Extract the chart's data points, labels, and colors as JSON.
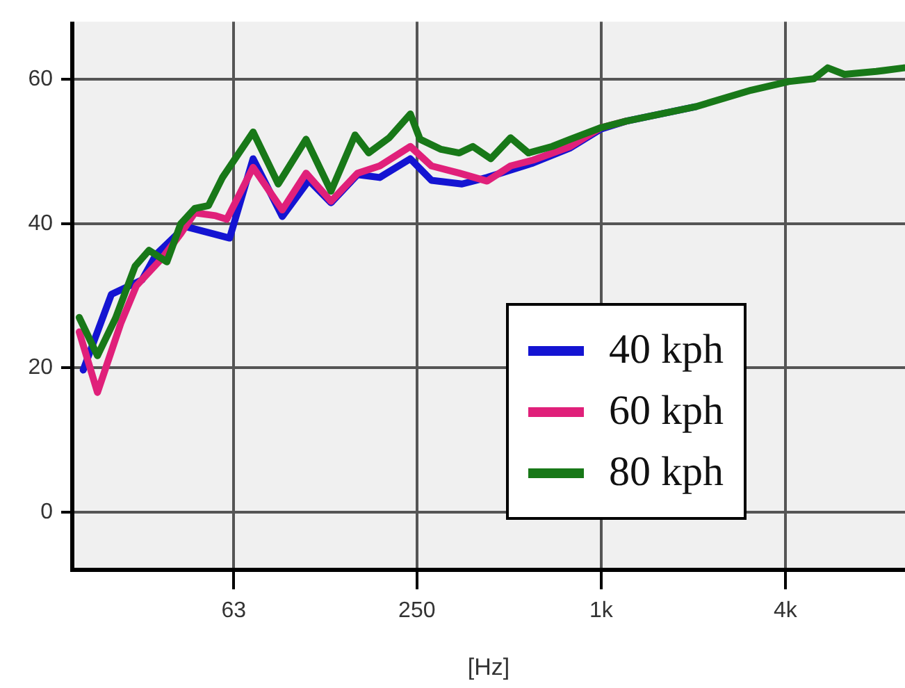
{
  "chart_data": {
    "type": "line",
    "xlabel": "[Hz]",
    "log": "x",
    "xlim": [
      18.7,
      9840
    ],
    "xticks": [
      63,
      250,
      {
        "value": 1000,
        "label": "1k"
      },
      {
        "value": 4000,
        "label": "4k"
      }
    ],
    "ylim": [
      -8,
      68
    ],
    "yticks": [
      0,
      20,
      40,
      60
    ],
    "grid": true,
    "legend": "bottom right",
    "marker": "none",
    "line_style": "solid",
    "series": [
      {
        "name": "40 kph",
        "color": "#1414d2",
        "x": [
          20.3,
          25.1,
          31.6,
          35.1,
          43.7,
          61.1,
          72.9,
          90.8,
          110.9,
          131,
          160,
          189,
          238,
          279,
          351,
          424,
          598,
          793,
          998,
          1205,
          2032
        ],
        "values": [
          19.7,
          30.2,
          32.2,
          35.7,
          39.6,
          38,
          49,
          41,
          46,
          42.9,
          46.8,
          46.4,
          49,
          46,
          45.5,
          46.4,
          48.4,
          50.5,
          53.1,
          54.2,
          56.2
        ]
      },
      {
        "name": "60 kph",
        "color": "#e0207a",
        "x": [
          19.7,
          22.6,
          27,
          30.3,
          36.9,
          42.3,
          47,
          55,
          59.8,
          72.9,
          90.8,
          108.6,
          131,
          160,
          189,
          238,
          279,
          344,
          424,
          506,
          598,
          793,
          998,
          1205
        ],
        "values": [
          25,
          16.6,
          26.3,
          31.4,
          35.3,
          38.6,
          41.5,
          41.1,
          40.6,
          47.8,
          41.9,
          47,
          43.1,
          47,
          48,
          50.7,
          48,
          47,
          45.9,
          48,
          48.8,
          50.7,
          53.3,
          54.2
        ]
      },
      {
        "name": "80 kph",
        "color": "#187818",
        "x": [
          19.7,
          22.6,
          25.9,
          30,
          33.3,
          38.1,
          42.3,
          47,
          52.1,
          57.9,
          72.9,
          88.1,
          108.6,
          131,
          157,
          174,
          203,
          238,
          256,
          300,
          344,
          381,
          436,
          506,
          579,
          692,
          793,
          998,
          1205,
          2032,
          3090,
          4100,
          4955,
          5500,
          6237,
          7925,
          9772
        ],
        "values": [
          27,
          21.7,
          26.9,
          34.1,
          36.3,
          34.7,
          40,
          42.1,
          42.5,
          46.4,
          52.7,
          45.5,
          51.7,
          44.5,
          52.3,
          49.8,
          51.9,
          55.2,
          51.7,
          50.3,
          49.8,
          50.7,
          49,
          51.9,
          49.8,
          50.7,
          51.7,
          53.3,
          54.2,
          56.2,
          58.5,
          59.7,
          60.1,
          61.6,
          60.7,
          61.1,
          61.6
        ]
      }
    ]
  }
}
